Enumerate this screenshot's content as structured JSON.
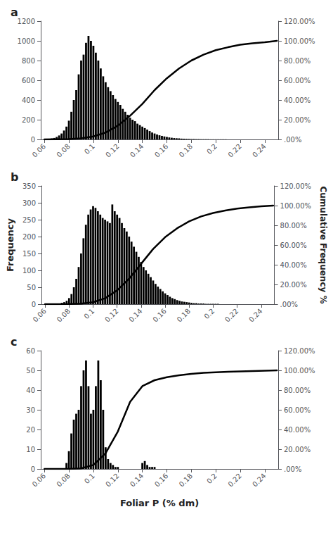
{
  "chart_data": [
    {
      "type": "bar",
      "title": "a",
      "series": [
        {
          "type": "bar",
          "color": "black",
          "x": [
            0.06,
            0.062,
            0.064,
            0.066,
            0.068,
            0.07,
            0.072,
            0.074,
            0.076,
            0.078,
            0.08,
            0.082,
            0.084,
            0.086,
            0.088,
            0.09,
            0.092,
            0.094,
            0.096,
            0.098,
            0.1,
            0.102,
            0.104,
            0.106,
            0.108,
            0.11,
            0.112,
            0.114,
            0.116,
            0.118,
            0.12,
            0.122,
            0.124,
            0.126,
            0.128,
            0.13,
            0.132,
            0.134,
            0.136,
            0.138,
            0.14,
            0.142,
            0.144,
            0.146,
            0.148,
            0.15,
            0.152,
            0.154,
            0.156,
            0.158,
            0.16,
            0.162,
            0.164,
            0.166,
            0.168,
            0.17,
            0.172,
            0.174,
            0.176,
            0.178,
            0.18,
            0.182,
            0.184,
            0.186,
            0.188,
            0.19,
            0.192,
            0.194,
            0.196,
            0.198,
            0.2,
            0.202,
            0.204,
            0.206,
            0.208,
            0.21,
            0.212,
            0.214,
            0.216,
            0.218,
            0.22,
            0.222,
            0.224,
            0.226,
            0.228,
            0.23,
            0.232,
            0.234,
            0.236,
            0.238,
            0.24,
            0.242,
            0.244,
            0.246
          ],
          "values": [
            2,
            4,
            6,
            10,
            15,
            25,
            40,
            60,
            90,
            130,
            190,
            280,
            400,
            500,
            660,
            800,
            860,
            980,
            1050,
            1000,
            950,
            880,
            800,
            720,
            640,
            580,
            530,
            490,
            450,
            410,
            380,
            350,
            310,
            280,
            250,
            220,
            200,
            185,
            160,
            145,
            130,
            115,
            100,
            85,
            70,
            60,
            50,
            42,
            36,
            30,
            25,
            20,
            17,
            14,
            12,
            10,
            8,
            7,
            6,
            5,
            4,
            4,
            3,
            3,
            2,
            2,
            2,
            2,
            1,
            1,
            1,
            1,
            1,
            1,
            1,
            0,
            0,
            0,
            0,
            0,
            0,
            0,
            0,
            0,
            0,
            0,
            0,
            0,
            0,
            0,
            0,
            0,
            0,
            0
          ]
        },
        {
          "type": "line",
          "axis": "y2",
          "color": "black",
          "x": [
            0.06,
            0.07,
            0.08,
            0.09,
            0.1,
            0.11,
            0.12,
            0.13,
            0.14,
            0.15,
            0.16,
            0.17,
            0.18,
            0.19,
            0.2,
            0.21,
            0.22,
            0.23,
            0.24,
            0.25
          ],
          "values": [
            0.0,
            0.1,
            0.3,
            1.0,
            3.0,
            7.0,
            14.0,
            24.0,
            36.0,
            50.0,
            62.0,
            72.0,
            80.0,
            86.0,
            90.5,
            93.5,
            96.0,
            97.5,
            98.5,
            100.0
          ]
        }
      ],
      "xlim": [
        0.057,
        0.251
      ],
      "xticks": [
        0.06,
        0.08,
        0.1,
        0.12,
        0.14,
        0.16,
        0.18,
        0.2,
        0.22,
        0.24
      ],
      "ylim": [
        0,
        1200
      ],
      "yticks": [
        0,
        200,
        400,
        600,
        800,
        1000,
        1200
      ],
      "y2lim": [
        0,
        120
      ],
      "y2ticks": [
        {
          "value": 0,
          "label": ".00%"
        },
        {
          "value": 20,
          "label": "20.00%"
        },
        {
          "value": 40,
          "label": "40.00%"
        },
        {
          "value": 60,
          "label": "60.00%"
        },
        {
          "value": 80,
          "label": "80.00%"
        },
        {
          "value": 100,
          "label": "100.00%"
        },
        {
          "value": 120,
          "label": "120.00%"
        }
      ],
      "grid": false
    },
    {
      "type": "bar",
      "title": "b",
      "ylabel": "Frequency",
      "y2label": "Cumulative Frequency %",
      "series": [
        {
          "type": "bar",
          "color": "black",
          "x": [
            0.06,
            0.062,
            0.064,
            0.066,
            0.068,
            0.07,
            0.072,
            0.074,
            0.076,
            0.078,
            0.08,
            0.082,
            0.084,
            0.086,
            0.088,
            0.09,
            0.092,
            0.094,
            0.096,
            0.098,
            0.1,
            0.102,
            0.104,
            0.106,
            0.108,
            0.11,
            0.112,
            0.114,
            0.116,
            0.118,
            0.12,
            0.122,
            0.124,
            0.126,
            0.128,
            0.13,
            0.132,
            0.134,
            0.136,
            0.138,
            0.14,
            0.142,
            0.144,
            0.146,
            0.148,
            0.15,
            0.152,
            0.154,
            0.156,
            0.158,
            0.16,
            0.162,
            0.164,
            0.166,
            0.168,
            0.17,
            0.172,
            0.174,
            0.176,
            0.178,
            0.18,
            0.182,
            0.184,
            0.186,
            0.188,
            0.19,
            0.192,
            0.194,
            0.196,
            0.198,
            0.2,
            0.202,
            0.204,
            0.206,
            0.208,
            0.21,
            0.212,
            0.214,
            0.216,
            0.218,
            0.22,
            0.222,
            0.224,
            0.226,
            0.228,
            0.23,
            0.232,
            0.234,
            0.236,
            0.238,
            0.24,
            0.242,
            0.244,
            0.246
          ],
          "values": [
            0,
            0,
            0,
            0,
            0,
            1,
            2,
            4,
            6,
            10,
            18,
            30,
            50,
            75,
            110,
            150,
            195,
            235,
            265,
            280,
            290,
            285,
            275,
            265,
            255,
            250,
            245,
            240,
            295,
            275,
            265,
            255,
            240,
            225,
            215,
            200,
            185,
            170,
            155,
            140,
            125,
            110,
            100,
            90,
            80,
            70,
            60,
            52,
            45,
            38,
            32,
            27,
            22,
            18,
            15,
            12,
            10,
            8,
            7,
            6,
            5,
            4,
            3,
            3,
            2,
            2,
            2,
            1,
            1,
            1,
            1,
            1,
            1,
            0,
            0,
            0,
            0,
            0,
            0,
            0,
            0,
            0,
            0,
            0,
            0,
            0,
            0,
            0,
            0,
            0,
            0,
            0,
            0,
            0
          ]
        },
        {
          "type": "line",
          "axis": "y2",
          "color": "black",
          "x": [
            0.06,
            0.07,
            0.08,
            0.09,
            0.1,
            0.11,
            0.12,
            0.13,
            0.14,
            0.15,
            0.16,
            0.17,
            0.18,
            0.19,
            0.2,
            0.21,
            0.22,
            0.23,
            0.24,
            0.25
          ],
          "values": [
            0.0,
            0.0,
            0.1,
            0.5,
            2.0,
            6.0,
            14.0,
            26.0,
            41.0,
            56.0,
            68.0,
            77.0,
            84.0,
            89.0,
            92.5,
            95.0,
            97.0,
            98.2,
            99.2,
            100.0
          ]
        }
      ],
      "xlim": [
        0.057,
        0.251
      ],
      "xticks": [
        0.06,
        0.08,
        0.1,
        0.12,
        0.14,
        0.16,
        0.18,
        0.2,
        0.22,
        0.24
      ],
      "ylim": [
        0,
        350
      ],
      "yticks": [
        0,
        50,
        100,
        150,
        200,
        250,
        300,
        350
      ],
      "y2lim": [
        0,
        120
      ],
      "y2ticks": [
        {
          "value": 0,
          "label": ".00%"
        },
        {
          "value": 20,
          "label": "20.00%"
        },
        {
          "value": 40,
          "label": "40.00%"
        },
        {
          "value": 60,
          "label": "60.00%"
        },
        {
          "value": 80,
          "label": "80.00%"
        },
        {
          "value": 100,
          "label": "100.00%"
        },
        {
          "value": 120,
          "label": "120.00%"
        }
      ],
      "grid": false
    },
    {
      "type": "bar",
      "title": "c",
      "xlabel": "Foliar P (% dm)",
      "series": [
        {
          "type": "bar",
          "color": "black",
          "x": [
            0.06,
            0.062,
            0.064,
            0.066,
            0.068,
            0.07,
            0.072,
            0.074,
            0.076,
            0.078,
            0.08,
            0.082,
            0.084,
            0.086,
            0.088,
            0.09,
            0.092,
            0.094,
            0.096,
            0.098,
            0.1,
            0.102,
            0.104,
            0.106,
            0.108,
            0.11,
            0.112,
            0.114,
            0.116,
            0.118,
            0.12,
            0.122,
            0.124,
            0.126,
            0.128,
            0.13,
            0.132,
            0.134,
            0.136,
            0.138,
            0.14,
            0.142,
            0.144,
            0.146,
            0.148,
            0.15,
            0.152,
            0.154,
            0.156,
            0.158,
            0.16,
            0.162,
            0.164,
            0.166,
            0.168,
            0.17,
            0.172,
            0.174,
            0.176,
            0.178,
            0.18,
            0.182,
            0.184,
            0.186,
            0.188,
            0.19,
            0.192,
            0.194,
            0.196,
            0.198,
            0.2,
            0.202,
            0.204,
            0.206,
            0.208,
            0.21,
            0.212,
            0.214,
            0.216,
            0.218,
            0.22,
            0.222,
            0.224,
            0.226,
            0.228,
            0.23,
            0.232,
            0.234,
            0.236,
            0.238,
            0.24,
            0.242,
            0.244,
            0.246
          ],
          "values": [
            0,
            0,
            0,
            0,
            0,
            0,
            0,
            0,
            0,
            3,
            9,
            18,
            25,
            28,
            30,
            42,
            50,
            55,
            42,
            28,
            30,
            42,
            55,
            45,
            30,
            11,
            5,
            3,
            2,
            1,
            1,
            0,
            0,
            0,
            0,
            0,
            0,
            0,
            0,
            0,
            3,
            4,
            2,
            1,
            1,
            1,
            0,
            0,
            0,
            0,
            0,
            0,
            0,
            0,
            0,
            0,
            0,
            0,
            0,
            0,
            0,
            0,
            0,
            0,
            0,
            0,
            0,
            0,
            0,
            0,
            0,
            0,
            0,
            0,
            0,
            0,
            0,
            0,
            0,
            0,
            0,
            0,
            0,
            0,
            0,
            0,
            0,
            0,
            0,
            0,
            0,
            0,
            0,
            0
          ]
        },
        {
          "type": "line",
          "axis": "y2",
          "color": "black",
          "x": [
            0.06,
            0.07,
            0.08,
            0.09,
            0.1,
            0.11,
            0.12,
            0.13,
            0.14,
            0.15,
            0.16,
            0.17,
            0.18,
            0.19,
            0.2,
            0.21,
            0.22,
            0.23,
            0.24,
            0.25
          ],
          "values": [
            0.0,
            0.0,
            0.0,
            0.5,
            4.0,
            16.0,
            38.0,
            68.0,
            84.0,
            90.0,
            93.0,
            95.0,
            96.5,
            97.5,
            98.0,
            98.5,
            99.0,
            99.3,
            99.6,
            100.0
          ]
        }
      ],
      "xlim": [
        0.057,
        0.251
      ],
      "xticks": [
        0.06,
        0.08,
        0.1,
        0.12,
        0.14,
        0.16,
        0.18,
        0.2,
        0.22,
        0.24
      ],
      "ylim": [
        0,
        60
      ],
      "yticks": [
        0,
        10,
        20,
        30,
        40,
        50,
        60
      ],
      "y2lim": [
        0,
        120
      ],
      "y2ticks": [
        {
          "value": 0,
          "label": ".00%"
        },
        {
          "value": 20,
          "label": "20.00%"
        },
        {
          "value": 40,
          "label": "40.00%"
        },
        {
          "value": 60,
          "label": "60.00%"
        },
        {
          "value": 80,
          "label": "80.00%"
        },
        {
          "value": 100,
          "label": "100.00%"
        },
        {
          "value": 120,
          "label": "120.00%"
        }
      ],
      "grid": false
    }
  ]
}
